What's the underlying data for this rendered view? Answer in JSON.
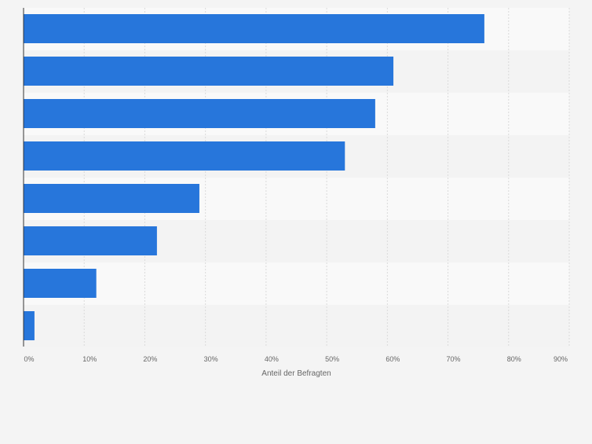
{
  "chart_data": {
    "type": "bar",
    "orientation": "horizontal",
    "categories": [
      "",
      "",
      "",
      "",
      "",
      "",
      "",
      ""
    ],
    "values": [
      76,
      61,
      58,
      53,
      29,
      22,
      12,
      1.8
    ],
    "xlabel": "Anteil der Befragten",
    "ylabel": "",
    "xlim": [
      0,
      90
    ],
    "x_ticks": [
      0,
      10,
      20,
      30,
      40,
      50,
      60,
      70,
      80,
      90
    ],
    "x_tick_labels": [
      "0%",
      "10%",
      "20%",
      "30%",
      "40%",
      "50%",
      "60%",
      "70%",
      "80%",
      "90%"
    ],
    "grid": true,
    "legend": "none"
  },
  "colors": {
    "bar": "#2776db",
    "background": "#f4f4f4",
    "band_light": "#f9f9f9",
    "band_dark": "#f3f3f3",
    "gridline": "#dadada",
    "axis": "#333333",
    "text": "#666666"
  }
}
